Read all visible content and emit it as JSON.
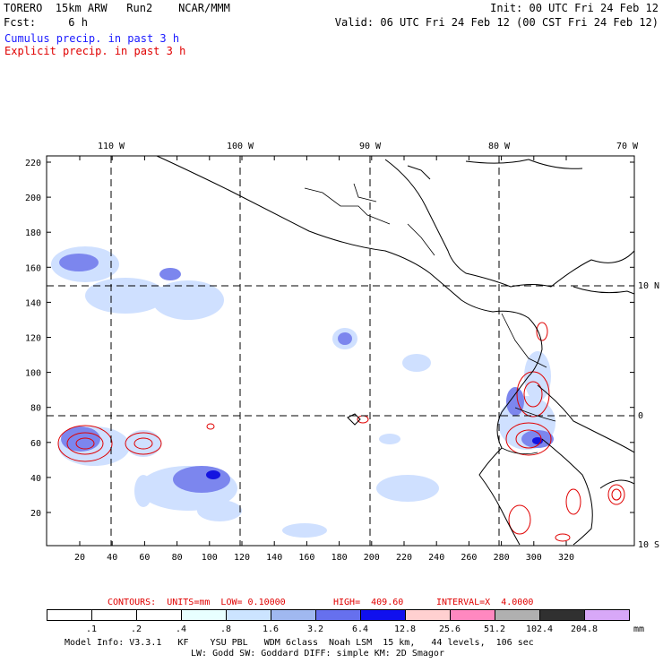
{
  "header": {
    "line1_left": "TORERO  15km ARW   Run2    NCAR/MMM",
    "line1_right": "Init: 00 UTC Fri 24 Feb 12",
    "line2_left": "Fcst:     6 h",
    "line2_right": "Valid: 06 UTC Fri 24 Feb 12 (00 CST Fri 24 Feb 12)",
    "legend_cumulus": "Cumulus precip. in past 3 h",
    "legend_explicit": "Explicit precip. in past 3 h"
  },
  "map": {
    "longitude_labels": [
      "110 W",
      "100 W",
      "90 W",
      "80 W",
      "70 W"
    ],
    "latitude_labels": [
      "10 N",
      "0",
      "10 S"
    ],
    "y_ticks": [
      "220",
      "200",
      "180",
      "160",
      "140",
      "120",
      "100",
      "80",
      "60",
      "40",
      "20"
    ],
    "x_ticks": [
      "20",
      "40",
      "60",
      "80",
      "100",
      "120",
      "140",
      "160",
      "180",
      "200",
      "220",
      "240",
      "260",
      "280",
      "300",
      "320"
    ]
  },
  "contours_line": {
    "label": "CONTOURS:  UNITS=mm  LOW= 0.10000",
    "high": "HIGH=  409.60",
    "interval": "INTERVAL=X  4.0000"
  },
  "colorbar": {
    "labels": [
      ".1",
      ".2",
      ".4",
      ".8",
      "1.6",
      "3.2",
      "6.4",
      "12.8",
      "25.6",
      "51.2",
      "102.4",
      "204.8"
    ],
    "unit": "mm",
    "colors": [
      "#ffffff",
      "#ffffff",
      "#ffffff",
      "#e8ffff",
      "#cce4ff",
      "#a0b8f0",
      "#6670ee",
      "#1010ee",
      "#ffd0d0",
      "#ff88c0",
      "#b0b0b0",
      "#303030",
      "#d8a8f8"
    ]
  },
  "footer": {
    "line1": "Model Info: V3.3.1   KF    YSU PBL   WDM 6class  Noah LSM  15 km,   44 levels,  106 sec",
    "line2": "LW: Godd SW: Goddard DIFF: simple KM: 2D Smagor"
  }
}
